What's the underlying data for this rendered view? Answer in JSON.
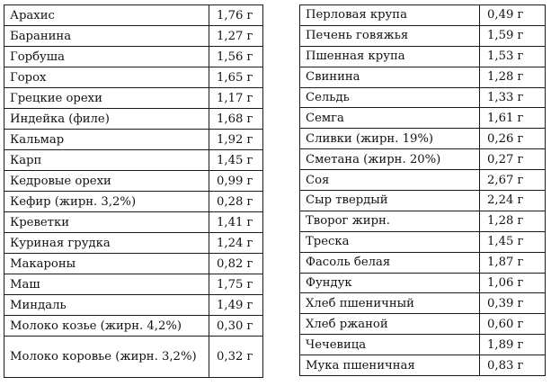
{
  "left_table": {
    "rows": [
      {
        "name": "Арахис",
        "value": "1,76 г"
      },
      {
        "name": "Баранина",
        "value": "1,27 г"
      },
      {
        "name": "Горбуша",
        "value": "1,56 г"
      },
      {
        "name": "Горох",
        "value": "1,65 г"
      },
      {
        "name": "Грецкие орехи",
        "value": "1,17 г"
      },
      {
        "name": "Индейка (филе)",
        "value": "1,68 г"
      },
      {
        "name": "Кальмар",
        "value": "1,92 г"
      },
      {
        "name": "Карп",
        "value": "1,45 г"
      },
      {
        "name": "Кедровые орехи",
        "value": "0,99 г"
      },
      {
        "name": "Кефир (жирн. 3,2%)",
        "value": "0,28 г"
      },
      {
        "name": "Креветки",
        "value": "1,41 г"
      },
      {
        "name": "Куриная грудка",
        "value": "1,24 г"
      },
      {
        "name": "Макароны",
        "value": "0,82 г"
      },
      {
        "name": "Маш",
        "value": "1,75 г"
      },
      {
        "name": "Миндаль",
        "value": "1,49 г"
      },
      {
        "name": "Молоко козье (жирн. 4,2%)",
        "value": "0,30 г"
      },
      {
        "name": "Молоко коровье (жирн. 3,2%)",
        "value": "0,32 г"
      }
    ]
  },
  "right_table": {
    "rows": [
      {
        "name": "Перловая крупа",
        "value": "0,49 г"
      },
      {
        "name": "Печень говяжья",
        "value": "1,59 г"
      },
      {
        "name": "Пшенная крупа",
        "value": "1,53 г"
      },
      {
        "name": "Свинина",
        "value": "1,28 г"
      },
      {
        "name": "Сельдь",
        "value": "1,33 г"
      },
      {
        "name": "Семга",
        "value": "1,61 г"
      },
      {
        "name": "Сливки (жирн. 19%)",
        "value": "0,26 г"
      },
      {
        "name": "Сметана (жирн. 20%)",
        "value": "0,27 г"
      },
      {
        "name": "Соя",
        "value": "2,67 г"
      },
      {
        "name": "Сыр твердый",
        "value": "2,24 г"
      },
      {
        "name": "Творог жирн.",
        "value": "1,28 г"
      },
      {
        "name": "Треска",
        "value": "1,45 г"
      },
      {
        "name": "Фасоль белая",
        "value": "1,87 г"
      },
      {
        "name": "Фундук",
        "value": "1,06 г"
      },
      {
        "name": "Хлеб пшеничный",
        "value": "0,39 г"
      },
      {
        "name": "Хлеб ржаной",
        "value": "0,60 г"
      },
      {
        "name": "Чечевица",
        "value": "1,89 г"
      },
      {
        "name": "Мука пшеничная",
        "value": "0,83 г"
      }
    ]
  }
}
